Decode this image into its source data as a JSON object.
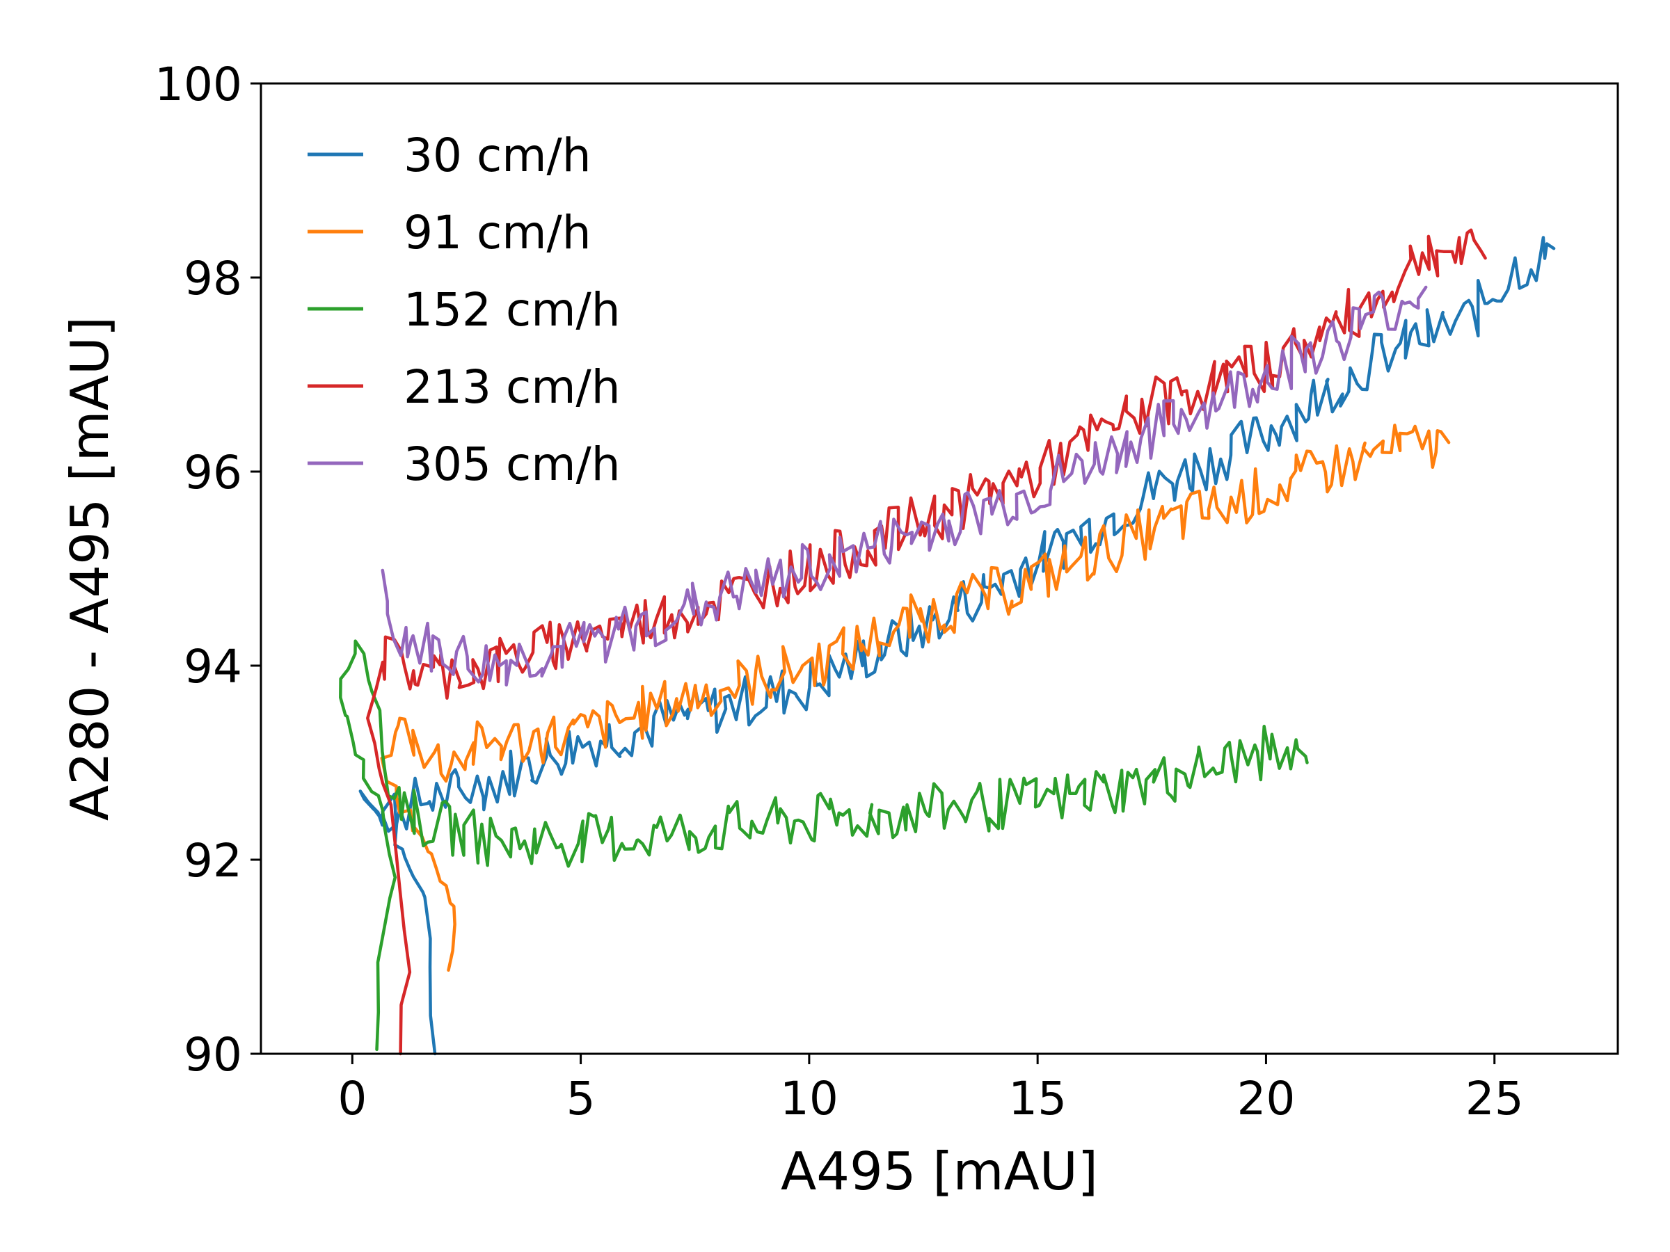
{
  "chart_data": {
    "type": "line",
    "title": "",
    "xlabel": "A495 [mAU]",
    "ylabel": "A280 - A495 [mAU]",
    "xlim": [
      -2,
      27.7
    ],
    "ylim": [
      90,
      100
    ],
    "xticks": [
      0,
      5,
      10,
      15,
      20,
      25
    ],
    "yticks": [
      90,
      92,
      94,
      96,
      98,
      100
    ],
    "grid": false,
    "legend_position": "top-left",
    "series": [
      {
        "name": "30 cm/h",
        "color": "#1f77b4",
        "points": [
          [
            1.8,
            90.0
          ],
          [
            1.7,
            90.9
          ],
          [
            1.6,
            91.6
          ],
          [
            1.2,
            92.0
          ],
          [
            0.9,
            92.3
          ],
          [
            0.5,
            92.5
          ],
          [
            0.2,
            92.7
          ],
          [
            0.6,
            92.5
          ],
          [
            1.5,
            92.6
          ],
          [
            3.0,
            92.8
          ],
          [
            5.0,
            93.2
          ],
          [
            7.5,
            93.5
          ],
          [
            10.0,
            93.8
          ],
          [
            12.5,
            94.4
          ],
          [
            15.0,
            95.1
          ],
          [
            17.5,
            95.8
          ],
          [
            20.0,
            96.4
          ],
          [
            22.5,
            97.2
          ],
          [
            24.5,
            97.6
          ],
          [
            25.5,
            98.1
          ],
          [
            26.3,
            98.3
          ]
        ]
      },
      {
        "name": "91 cm/h",
        "color": "#ff7f0e",
        "points": [
          [
            2.1,
            90.8
          ],
          [
            2.3,
            91.4
          ],
          [
            1.9,
            91.8
          ],
          [
            1.5,
            92.2
          ],
          [
            1.0,
            92.6
          ],
          [
            0.7,
            93.0
          ],
          [
            1.0,
            93.4
          ],
          [
            2.0,
            93.0
          ],
          [
            3.0,
            93.2
          ],
          [
            5.0,
            93.3
          ],
          [
            7.5,
            93.7
          ],
          [
            10.0,
            94.0
          ],
          [
            12.5,
            94.5
          ],
          [
            15.0,
            94.9
          ],
          [
            17.5,
            95.4
          ],
          [
            20.0,
            95.8
          ],
          [
            22.5,
            96.2
          ],
          [
            24.0,
            96.3
          ]
        ]
      },
      {
        "name": "152 cm/h",
        "color": "#2ca02c",
        "points": [
          [
            0.5,
            90.0
          ],
          [
            0.6,
            91.0
          ],
          [
            0.9,
            91.8
          ],
          [
            0.6,
            92.5
          ],
          [
            0.2,
            93.0
          ],
          [
            -0.3,
            93.7
          ],
          [
            0.1,
            94.3
          ],
          [
            0.5,
            93.8
          ],
          [
            0.8,
            92.8
          ],
          [
            1.5,
            92.4
          ],
          [
            3.0,
            92.2
          ],
          [
            5.0,
            92.2
          ],
          [
            7.5,
            92.3
          ],
          [
            10.0,
            92.4
          ],
          [
            12.5,
            92.5
          ],
          [
            15.0,
            92.6
          ],
          [
            17.5,
            92.8
          ],
          [
            20.0,
            93.1
          ],
          [
            20.9,
            93.0
          ]
        ]
      },
      {
        "name": "213 cm/h",
        "color": "#d62728",
        "points": [
          [
            1.0,
            90.0
          ],
          [
            1.2,
            90.9
          ],
          [
            1.0,
            91.7
          ],
          [
            0.8,
            92.5
          ],
          [
            0.4,
            93.5
          ],
          [
            0.6,
            94.1
          ],
          [
            1.5,
            93.9
          ],
          [
            3.0,
            94.0
          ],
          [
            5.0,
            94.3
          ],
          [
            7.5,
            94.6
          ],
          [
            10.0,
            95.0
          ],
          [
            12.5,
            95.5
          ],
          [
            15.0,
            96.0
          ],
          [
            17.5,
            96.7
          ],
          [
            20.0,
            97.1
          ],
          [
            22.5,
            97.8
          ],
          [
            23.5,
            98.3
          ],
          [
            24.8,
            98.2
          ]
        ]
      },
      {
        "name": "305 cm/h",
        "color": "#9467bd",
        "points": [
          [
            0.6,
            95.0
          ],
          [
            0.8,
            94.4
          ],
          [
            1.5,
            94.2
          ],
          [
            3.0,
            94.0
          ],
          [
            5.0,
            94.2
          ],
          [
            7.5,
            94.6
          ],
          [
            10.0,
            95.0
          ],
          [
            12.5,
            95.4
          ],
          [
            15.0,
            95.8
          ],
          [
            17.5,
            96.4
          ],
          [
            20.0,
            97.0
          ],
          [
            22.0,
            97.5
          ],
          [
            23.5,
            97.9
          ]
        ]
      }
    ]
  }
}
